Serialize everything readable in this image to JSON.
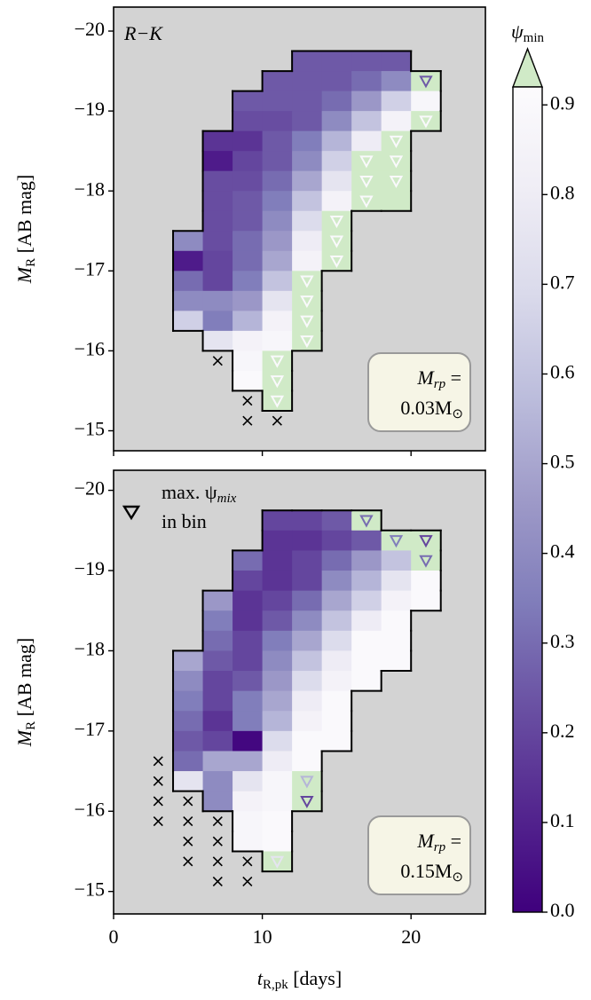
{
  "chart_data": [
    {
      "type": "heatmap",
      "annotation": "R−K",
      "box": [
        "M",
        "rp",
        " =",
        "0.03M",
        "⊙"
      ],
      "ylabel": [
        "M",
        "R",
        " [AB mag]"
      ],
      "xlim": [
        0,
        25
      ],
      "xticks": [
        0,
        10,
        20
      ],
      "show_xtick_labels": false,
      "ylim": [
        -20.3,
        -14.75
      ],
      "yaxis_inverted": true,
      "yticks": [
        {
          "value": -20,
          "label": "−20"
        },
        {
          "value": -19,
          "label": "−19"
        },
        {
          "value": -18,
          "label": "−18"
        },
        {
          "value": -17,
          "label": "−17"
        },
        {
          "value": -16,
          "label": "−16"
        },
        {
          "value": -15,
          "label": "−15"
        }
      ],
      "x_edges": [
        4,
        6,
        8,
        10,
        12,
        14,
        16,
        18,
        20,
        22
      ],
      "y_edges": [
        -19.75,
        -19.5,
        -19.25,
        -19,
        -18.75,
        -18.5,
        -18.25,
        -18,
        -17.75,
        -17.5,
        -17.25,
        -17,
        -16.75,
        -16.5,
        -16.25,
        -16,
        -15.75,
        -15.5,
        -15.25
      ],
      "values": [
        [
          null,
          null,
          null,
          null,
          0.25,
          0.25,
          0.25,
          0.25,
          null
        ],
        [
          null,
          null,
          null,
          0.25,
          0.25,
          0.25,
          0.3,
          0.4,
          0.95
        ],
        [
          null,
          null,
          0.25,
          0.25,
          0.25,
          0.3,
          0.45,
          0.65,
          0.88
        ],
        [
          null,
          null,
          0.22,
          0.22,
          0.25,
          0.4,
          0.6,
          0.85,
          0.95
        ],
        [
          null,
          0.15,
          0.15,
          0.25,
          0.35,
          0.55,
          0.8,
          0.95,
          null
        ],
        [
          null,
          0.08,
          0.2,
          0.25,
          0.4,
          0.65,
          0.95,
          0.95,
          null
        ],
        [
          null,
          0.22,
          0.22,
          0.3,
          0.5,
          0.75,
          0.95,
          0.95,
          null
        ],
        [
          null,
          0.22,
          0.25,
          0.35,
          0.6,
          0.85,
          0.95,
          0.95,
          null
        ],
        [
          null,
          0.22,
          0.25,
          0.4,
          0.7,
          0.95,
          null,
          null,
          null
        ],
        [
          0.4,
          0.22,
          0.3,
          0.45,
          0.8,
          0.95,
          null,
          null,
          null
        ],
        [
          0.08,
          0.2,
          0.3,
          0.5,
          0.85,
          0.95,
          null,
          null,
          null
        ],
        [
          0.3,
          0.2,
          0.35,
          0.6,
          0.95,
          null,
          null,
          null,
          null
        ],
        [
          0.4,
          0.4,
          0.45,
          0.75,
          0.95,
          null,
          null,
          null,
          null
        ],
        [
          0.65,
          0.35,
          0.55,
          0.85,
          0.95,
          null,
          null,
          null,
          null
        ],
        [
          null,
          0.75,
          0.85,
          0.88,
          0.95,
          null,
          null,
          null,
          null
        ],
        [
          null,
          null,
          0.88,
          0.95,
          null,
          null,
          null,
          null,
          null
        ],
        [
          null,
          null,
          0.9,
          0.95,
          null,
          null,
          null,
          null,
          null
        ],
        [
          null,
          null,
          null,
          0.95,
          null,
          null,
          null,
          null,
          null
        ]
      ],
      "markers": [
        {
          "x": 21,
          "y": -19.375,
          "value": 0.25
        },
        {
          "x": 21,
          "y": -18.875,
          "value": 0.9
        },
        {
          "x": 19,
          "y": -18.625,
          "value": 0.9
        },
        {
          "x": 17,
          "y": -18.375,
          "value": 0.9
        },
        {
          "x": 19,
          "y": -18.375,
          "value": 0.9
        },
        {
          "x": 17,
          "y": -18.125,
          "value": 0.9
        },
        {
          "x": 19,
          "y": -18.125,
          "value": 0.9
        },
        {
          "x": 17,
          "y": -17.875,
          "value": 0.9
        },
        {
          "x": 15,
          "y": -17.625,
          "value": 0.9
        },
        {
          "x": 15,
          "y": -17.375,
          "value": 0.9
        },
        {
          "x": 15,
          "y": -17.125,
          "value": 0.9
        },
        {
          "x": 13,
          "y": -16.875,
          "value": 0.9
        },
        {
          "x": 13,
          "y": -16.625,
          "value": 0.9
        },
        {
          "x": 13,
          "y": -16.375,
          "value": 0.9
        },
        {
          "x": 13,
          "y": -16.125,
          "value": 0.9
        },
        {
          "x": 11,
          "y": -15.875,
          "value": 0.9
        },
        {
          "x": 11,
          "y": -15.625,
          "value": 0.9
        },
        {
          "x": 11,
          "y": -15.375,
          "value": 0.9
        }
      ],
      "crosses": [
        {
          "x": 7,
          "y": -15.875
        },
        {
          "x": 9,
          "y": -15.375
        },
        {
          "x": 9,
          "y": -15.125
        },
        {
          "x": 11,
          "y": -15.125
        }
      ]
    },
    {
      "type": "heatmap",
      "legend": [
        "max. ψ",
        "mix",
        "in bin"
      ],
      "box": [
        "M",
        "rp",
        " =",
        "0.15M",
        "⊙"
      ],
      "ylabel": [
        "M",
        "R",
        " [AB mag]"
      ],
      "xlabel": [
        "t",
        "R,pk",
        " [days]"
      ],
      "xlim": [
        0,
        25
      ],
      "xticks": [
        0,
        10,
        20
      ],
      "show_xtick_labels": true,
      "ylim": [
        -20.25,
        -14.72
      ],
      "yaxis_inverted": true,
      "yticks": [
        {
          "value": -20,
          "label": "−20"
        },
        {
          "value": -19,
          "label": "−19"
        },
        {
          "value": -18,
          "label": "−18"
        },
        {
          "value": -17,
          "label": "−17"
        },
        {
          "value": -16,
          "label": "−16"
        },
        {
          "value": -15,
          "label": "−15"
        }
      ],
      "x_edges": [
        4,
        6,
        8,
        10,
        12,
        14,
        16,
        18,
        20,
        22
      ],
      "y_edges": [
        -19.75,
        -19.5,
        -19.25,
        -19,
        -18.75,
        -18.5,
        -18.25,
        -18,
        -17.75,
        -17.5,
        -17.25,
        -17,
        -16.75,
        -16.5,
        -16.25,
        -16,
        -15.75,
        -15.5,
        -15.25
      ],
      "values": [
        [
          null,
          null,
          null,
          0.2,
          0.2,
          0.25,
          0.95,
          null,
          null
        ],
        [
          null,
          null,
          null,
          0.15,
          0.15,
          0.2,
          0.25,
          0.95,
          0.95
        ],
        [
          null,
          null,
          0.3,
          0.15,
          0.2,
          0.3,
          0.45,
          0.6,
          0.95
        ],
        [
          null,
          null,
          0.2,
          0.15,
          0.2,
          0.4,
          0.55,
          0.75,
          0.9
        ],
        [
          null,
          0.45,
          0.15,
          0.2,
          0.3,
          0.5,
          0.65,
          0.85,
          0.9
        ],
        [
          null,
          0.35,
          0.15,
          0.25,
          0.4,
          0.6,
          0.8,
          0.9,
          null
        ],
        [
          null,
          0.3,
          0.2,
          0.35,
          0.5,
          0.7,
          0.9,
          0.9,
          null
        ],
        [
          0.5,
          0.25,
          0.2,
          0.4,
          0.6,
          0.8,
          0.9,
          0.9,
          null
        ],
        [
          0.4,
          0.2,
          0.25,
          0.45,
          0.7,
          0.85,
          0.9,
          null,
          null
        ],
        [
          0.35,
          0.2,
          0.35,
          0.5,
          0.8,
          0.9,
          null,
          null,
          null
        ],
        [
          0.3,
          0.15,
          0.35,
          0.55,
          0.85,
          0.9,
          null,
          null,
          null
        ],
        [
          0.25,
          0.2,
          0.02,
          0.7,
          0.9,
          0.9,
          null,
          null,
          null
        ],
        [
          0.3,
          0.5,
          0.5,
          0.8,
          0.9,
          null,
          null,
          null,
          null
        ],
        [
          0.75,
          0.4,
          0.75,
          0.88,
          0.95,
          null,
          null,
          null,
          null
        ],
        [
          null,
          0.4,
          0.85,
          0.88,
          0.95,
          null,
          null,
          null,
          null
        ],
        [
          null,
          null,
          0.88,
          0.9,
          null,
          null,
          null,
          null,
          null
        ],
        [
          null,
          null,
          0.88,
          0.9,
          null,
          null,
          null,
          null,
          null
        ],
        [
          null,
          null,
          null,
          0.95,
          null,
          null,
          null,
          null,
          null
        ]
      ],
      "markers": [
        {
          "x": 17,
          "y": -19.625,
          "value": 0.3
        },
        {
          "x": 19,
          "y": -19.375,
          "value": 0.35
        },
        {
          "x": 21,
          "y": -19.375,
          "value": 0.2
        },
        {
          "x": 21,
          "y": -19.125,
          "value": 0.3
        },
        {
          "x": 13,
          "y": -16.375,
          "value": 0.55
        },
        {
          "x": 13,
          "y": -16.125,
          "value": 0.2
        },
        {
          "x": 11,
          "y": -15.375,
          "value": 0.75
        }
      ],
      "crosses": [
        {
          "x": 3,
          "y": -16.625
        },
        {
          "x": 3,
          "y": -16.375
        },
        {
          "x": 3,
          "y": -16.125
        },
        {
          "x": 3,
          "y": -15.875
        },
        {
          "x": 5,
          "y": -16.125
        },
        {
          "x": 5,
          "y": -15.875
        },
        {
          "x": 5,
          "y": -15.625
        },
        {
          "x": 5,
          "y": -15.375
        },
        {
          "x": 7,
          "y": -15.875
        },
        {
          "x": 7,
          "y": -15.625
        },
        {
          "x": 7,
          "y": -15.375
        },
        {
          "x": 7,
          "y": -15.125
        },
        {
          "x": 9,
          "y": -15.375
        },
        {
          "x": 9,
          "y": -15.125
        }
      ]
    },
    {
      "type": "colorbar",
      "label": [
        "ψ",
        "min"
      ],
      "clim": [
        0,
        0.92
      ],
      "ticks": [
        {
          "value": 0,
          "label": "0.0"
        },
        0.1,
        0.2,
        0.3,
        0.4,
        0.5,
        0.6,
        0.7,
        0.8,
        0.9
      ],
      "colormap": [
        "#3f007d",
        "#54278f",
        "#6a51a3",
        "#807dba",
        "#9e9ac8",
        "#bcbddc",
        "#dadaeb",
        "#efedf5",
        "#fcfbfd"
      ],
      "over_color": "#d0eac7"
    }
  ]
}
